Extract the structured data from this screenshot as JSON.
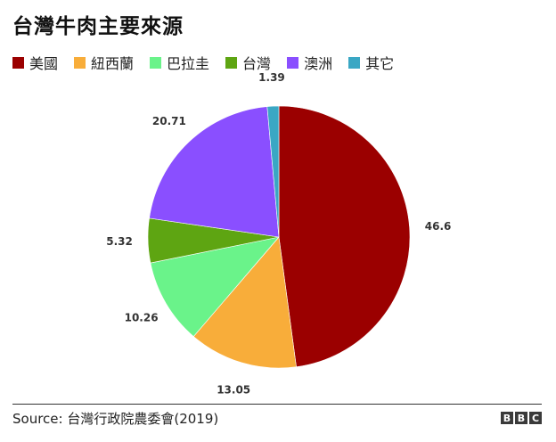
{
  "title": "台灣牛肉主要來源",
  "source": "Source: 台灣行政院農委會(2019)",
  "logo": [
    "B",
    "B",
    "C"
  ],
  "chart_data": {
    "type": "pie",
    "title": "台灣牛肉主要來源",
    "legend_position": "top",
    "series": [
      {
        "name": "美國",
        "value": 46.6,
        "label": "46.6",
        "color": "#9b0000"
      },
      {
        "name": "紐西蘭",
        "value": 13.05,
        "label": "13.05",
        "color": "#f8ad3a"
      },
      {
        "name": "巴拉圭",
        "value": 10.26,
        "label": "10.26",
        "color": "#6af38a"
      },
      {
        "name": "台灣",
        "value": 5.32,
        "label": "5.32",
        "color": "#5ea512"
      },
      {
        "name": "澳洲",
        "value": 20.71,
        "label": "20.71",
        "color": "#8a4fff"
      },
      {
        "name": "其它",
        "value": 1.39,
        "label": "1.39",
        "color": "#3aa7c4"
      }
    ]
  }
}
